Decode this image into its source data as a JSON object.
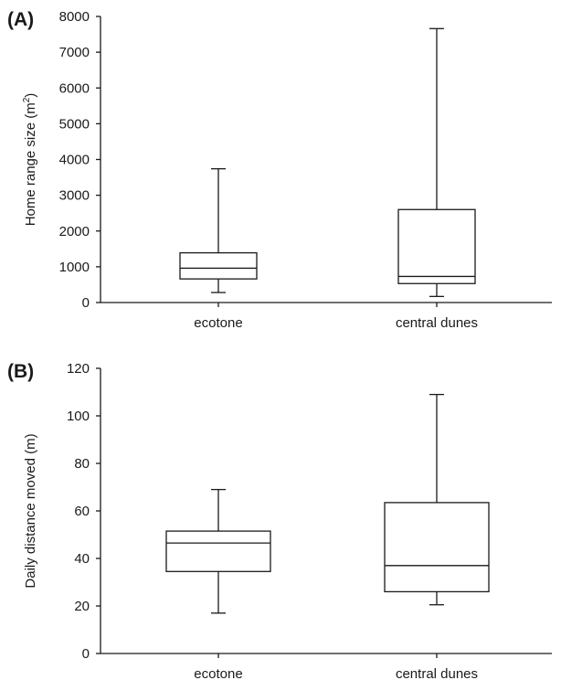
{
  "chart_data": [
    {
      "type": "box",
      "panel_label": "(A)",
      "ylabel": "Home range size (m",
      "ylabel_sup": "2",
      "ylabel_suffix": ")",
      "ylim": [
        0,
        8000
      ],
      "yticks": [
        "0",
        "1000",
        "2000",
        "3000",
        "4000",
        "5000",
        "6000",
        "7000",
        "8000"
      ],
      "categories": [
        "ecotone",
        "central dunes"
      ],
      "boxes": [
        {
          "min": 280,
          "q1": 660,
          "median": 960,
          "q3": 1390,
          "max": 3740
        },
        {
          "min": 170,
          "q1": 530,
          "median": 730,
          "q3": 2600,
          "max": 7660
        }
      ]
    },
    {
      "type": "box",
      "panel_label": "(B)",
      "ylabel": "Daily distance moved (m)",
      "ylim": [
        0,
        120
      ],
      "yticks": [
        "0",
        "20",
        "40",
        "60",
        "80",
        "100",
        "120"
      ],
      "categories": [
        "ecotone",
        "central dunes"
      ],
      "boxes": [
        {
          "min": 17,
          "q1": 34.5,
          "median": 46.5,
          "q3": 51.5,
          "max": 69
        },
        {
          "min": 20.5,
          "q1": 26,
          "median": 37,
          "q3": 63.5,
          "max": 109
        }
      ]
    }
  ]
}
